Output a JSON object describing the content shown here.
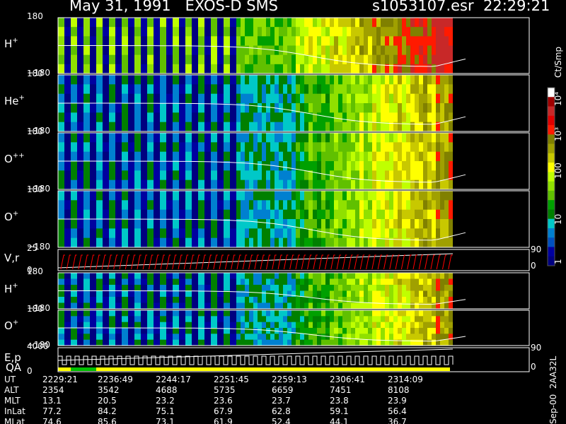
{
  "header": {
    "date_instrument": "May 31, 1991   EXOS-D SMS",
    "file_time": "s1053107.esr  22:29:21"
  },
  "colorbar": {
    "unit_label": "Ct/Smp",
    "tick_labels": [
      "10⁴",
      "10³",
      "100",
      "10",
      "1"
    ],
    "colors": [
      "#ffffff",
      "#a00000",
      "#c82828",
      "#e00000",
      "#ff1a00",
      "#808000",
      "#a0a000",
      "#c8c800",
      "#ffff00",
      "#c0ff00",
      "#90e000",
      "#60c000",
      "#00a000",
      "#008000",
      "#00c8c8",
      "#0080d0",
      "#0050c0",
      "#0000a0",
      "#000080"
    ]
  },
  "colors": {
    "background": "#000000",
    "frame": "#ffffff",
    "velocity_trace": "#ff0000",
    "trace": "#ffffff",
    "qa_good": "#ffff00",
    "qa_marked": "#00c000"
  },
  "chart_data": {
    "type": "heatmap",
    "panels": [
      {
        "id": "h-plus",
        "label": "H",
        "superscript": "+",
        "y_top": "180",
        "y_bottom": "−180"
      },
      {
        "id": "he-plus",
        "label": "He",
        "superscript": "+",
        "y_top": "180",
        "y_bottom": "−180"
      },
      {
        "id": "o-plusplus",
        "label": "O",
        "superscript": "++",
        "y_top": "180",
        "y_bottom": "−180"
      },
      {
        "id": "o-plus",
        "label": "O",
        "superscript": "+",
        "y_top": "180",
        "y_bottom": "−180"
      },
      {
        "id": "vr",
        "label": "V,r",
        "superscript": "",
        "y_top": "25",
        "y_bottom": "0",
        "right_top": "90",
        "right_bottom": "0"
      },
      {
        "id": "h-plus-2",
        "label": "H",
        "superscript": "+",
        "y_top": "180",
        "y_bottom": "−180"
      },
      {
        "id": "o-plus-2",
        "label": "O",
        "superscript": "+",
        "y_top": "180",
        "y_bottom": "−180"
      },
      {
        "id": "ep-qa",
        "label": "E,p",
        "label2": "QA",
        "superscript": "",
        "y_top": "4000",
        "y_bottom": "0",
        "right_top": "90",
        "right_bottom": "0"
      }
    ],
    "x_axis": {
      "rows": [
        {
          "name": "UT",
          "values": [
            "2229:21",
            "2236:49",
            "2244:17",
            "2251:45",
            "2259:13",
            "2306:41",
            "2314:09"
          ]
        },
        {
          "name": "ALT",
          "values": [
            "2354",
            "3542",
            "4688",
            "5735",
            "6659",
            "7451",
            "8108"
          ]
        },
        {
          "name": "MLT",
          "values": [
            "13.1",
            "20.5",
            "23.2",
            "23.6",
            "23.7",
            "23.8",
            "23.9"
          ]
        },
        {
          "name": "InLat",
          "values": [
            "77.2",
            "84.2",
            "75.1",
            "67.9",
            "62.8",
            "59.1",
            "56.4"
          ]
        },
        {
          "name": "MLat",
          "values": [
            "74.6",
            "85.6",
            "73.1",
            "61.9",
            "52.4",
            "44.1",
            "36.7"
          ]
        }
      ]
    },
    "side_label": "Sep-00  2AA32L"
  }
}
